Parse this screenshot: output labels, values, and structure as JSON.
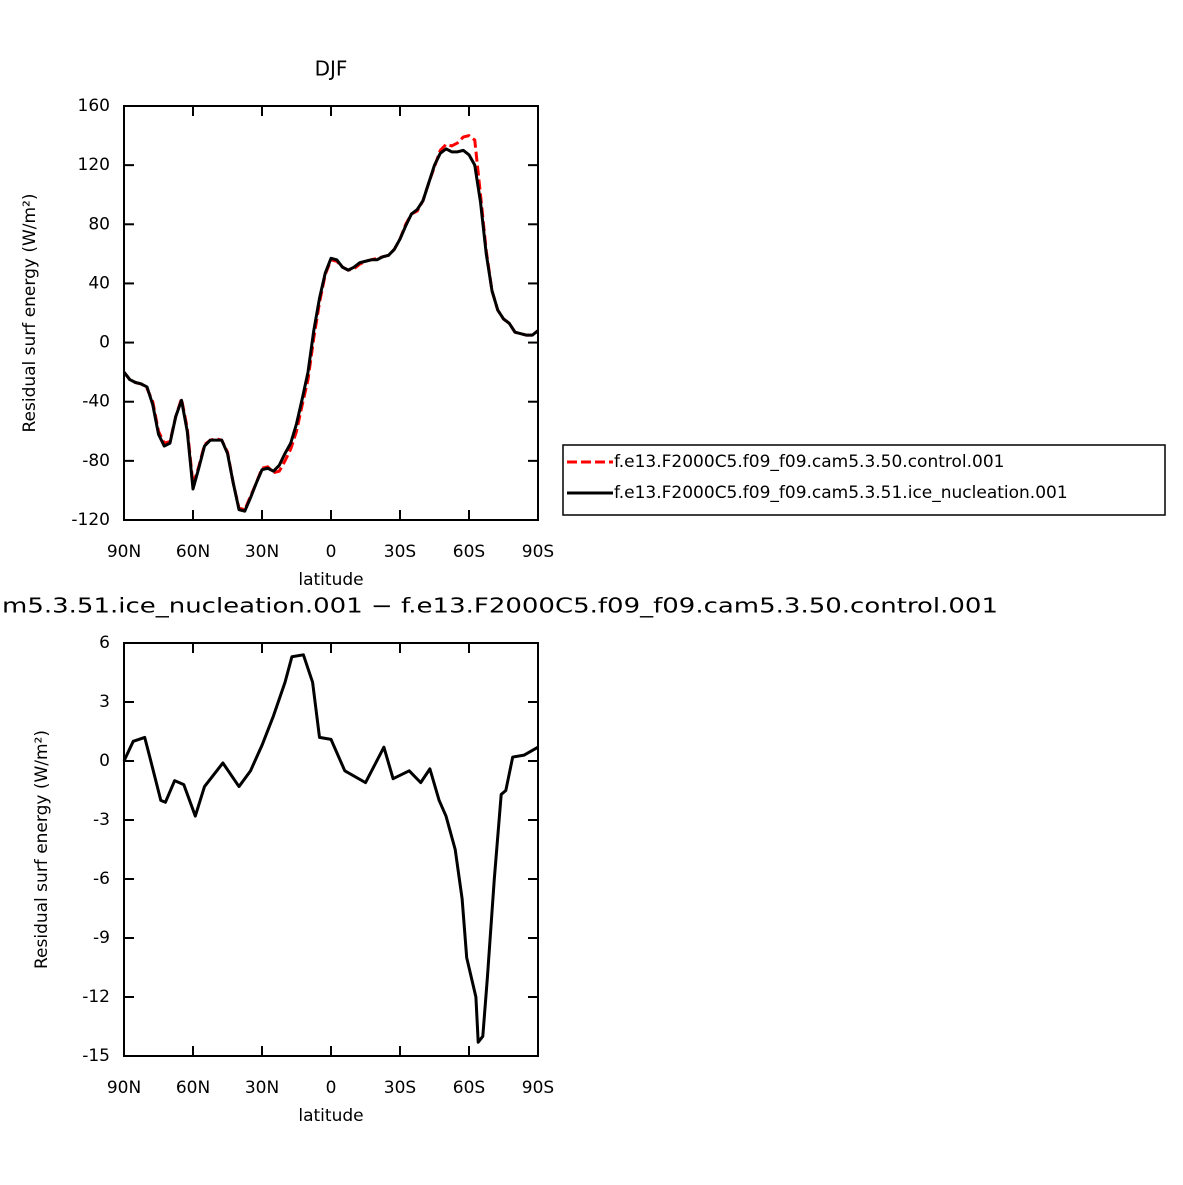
{
  "chart_data": [
    {
      "type": "line",
      "title": "DJF",
      "xlabel": "latitude",
      "ylabel": "Residual surf energy (W/m²)",
      "x": [
        90,
        87.5,
        85,
        82.5,
        80,
        77.5,
        75,
        72.5,
        70,
        67.5,
        65,
        62.5,
        60,
        57.5,
        55,
        52.5,
        50,
        47.5,
        45,
        42.5,
        40,
        37.5,
        35,
        32.5,
        30,
        27.5,
        25,
        22.5,
        20,
        17.5,
        15,
        12.5,
        10,
        7.5,
        5,
        2.5,
        0,
        -2.5,
        -5,
        -7.5,
        -10,
        -12.5,
        -15,
        -17.5,
        -20,
        -22.5,
        -25,
        -27.5,
        -30,
        -32.5,
        -35,
        -37.5,
        -40,
        -42.5,
        -45,
        -47.5,
        -50,
        -52.5,
        -55,
        -57.5,
        -60,
        -62.5,
        -65,
        -67.5,
        -70,
        -72.5,
        -75,
        -77.5,
        -80,
        -82.5,
        -85,
        -87.5,
        -90
      ],
      "series": [
        {
          "name": "f.e13.F2000C5.f09_f09.cam5.3.50.control.001",
          "color": "#ff0000",
          "dash": true,
          "values": [
            -20,
            -25,
            -27,
            -28,
            -31,
            -40,
            -60,
            -68,
            -67,
            -50,
            -38,
            -58,
            -96,
            -84,
            -69,
            -66,
            -65,
            -66,
            -74,
            -95,
            -112,
            -113,
            -104,
            -95,
            -85,
            -84,
            -88,
            -87,
            -80,
            -72,
            -60,
            -42,
            -25,
            3,
            27,
            46,
            56,
            55,
            51,
            49,
            50,
            53,
            55,
            56,
            57,
            58,
            59,
            63,
            70,
            80,
            87,
            89,
            96,
            108,
            119,
            130,
            134,
            133,
            135,
            139,
            140,
            137,
            100,
            62,
            35,
            22,
            16,
            13,
            7,
            6,
            5,
            5,
            8
          ]
        },
        {
          "name": "f.e13.F2000C5.f09_f09.cam5.3.51.ice_nucleation.001",
          "color": "#000000",
          "dash": false,
          "values": [
            -20,
            -25,
            -27,
            -28,
            -30,
            -42,
            -62,
            -70,
            -68,
            -50,
            -39,
            -60,
            -99,
            -85,
            -70,
            -66,
            -66,
            -66,
            -75,
            -95,
            -113,
            -114,
            -105,
            -95,
            -86,
            -85,
            -87,
            -83,
            -75,
            -68,
            -55,
            -38,
            -20,
            8,
            30,
            47,
            57,
            56,
            51,
            49,
            51,
            54,
            55,
            56,
            56,
            58,
            59,
            63,
            70,
            79,
            87,
            90,
            96,
            108,
            120,
            128,
            131,
            129,
            129,
            130,
            127,
            120,
            95,
            60,
            35,
            22,
            16,
            13,
            7,
            6,
            5,
            5,
            8
          ]
        }
      ],
      "xlim": [
        90,
        -90
      ],
      "xticks": [
        {
          "value": 90,
          "label": "90N"
        },
        {
          "value": 60,
          "label": "60N"
        },
        {
          "value": 30,
          "label": "30N"
        },
        0,
        {
          "value": -30,
          "label": "30S"
        },
        {
          "value": -60,
          "label": "60S"
        },
        {
          "value": -90,
          "label": "90S"
        }
      ],
      "ylim": [
        -120,
        160
      ],
      "yticks": [
        -120,
        -80,
        -40,
        0,
        40,
        80,
        120,
        160
      ],
      "legend": "right"
    },
    {
      "type": "line",
      "title": "m5.3.51.ice_nucleation.001 − f.e13.F2000C5.f09_f09.cam5.3.50.control.001",
      "xlabel": "latitude",
      "ylabel": "Residual surf energy (W/m²)",
      "x": [
        90,
        86,
        81,
        79,
        74,
        72,
        68,
        64,
        59,
        55,
        47,
        40,
        35,
        30,
        25,
        20,
        17,
        12,
        8,
        5,
        0,
        -6,
        -15,
        -23,
        -27,
        -34,
        -39,
        -43,
        -47,
        -50,
        -54,
        -57,
        -59,
        -63,
        -64,
        -66,
        -68,
        -71,
        -74,
        -76,
        -79,
        -84,
        -90
      ],
      "series": [
        {
          "color": "#000000",
          "dash": false,
          "values": [
            0,
            1.0,
            1.2,
            0.3,
            -2.0,
            -2.1,
            -1.0,
            -1.2,
            -2.8,
            -1.3,
            -0.1,
            -1.3,
            -0.5,
            0.8,
            2.3,
            4.0,
            5.3,
            5.4,
            4.0,
            1.2,
            1.1,
            -0.5,
            -1.1,
            0.7,
            -0.9,
            -0.5,
            -1.1,
            -0.4,
            -2.0,
            -2.8,
            -4.5,
            -7,
            -10,
            -12,
            -14.3,
            -14,
            -11,
            -6,
            -1.7,
            -1.5,
            0.2,
            0.3,
            0.7
          ]
        }
      ],
      "xlim": [
        90,
        -90
      ],
      "xticks": [
        {
          "value": 90,
          "label": "90N"
        },
        {
          "value": 60,
          "label": "60N"
        },
        {
          "value": 30,
          "label": "30N"
        },
        0,
        {
          "value": -30,
          "label": "30S"
        },
        {
          "value": -60,
          "label": "60S"
        },
        {
          "value": -90,
          "label": "90S"
        }
      ],
      "ylim": [
        -15,
        6
      ],
      "yticks": [
        -15,
        -12,
        -9,
        -6,
        -3,
        0,
        3,
        6
      ]
    }
  ]
}
